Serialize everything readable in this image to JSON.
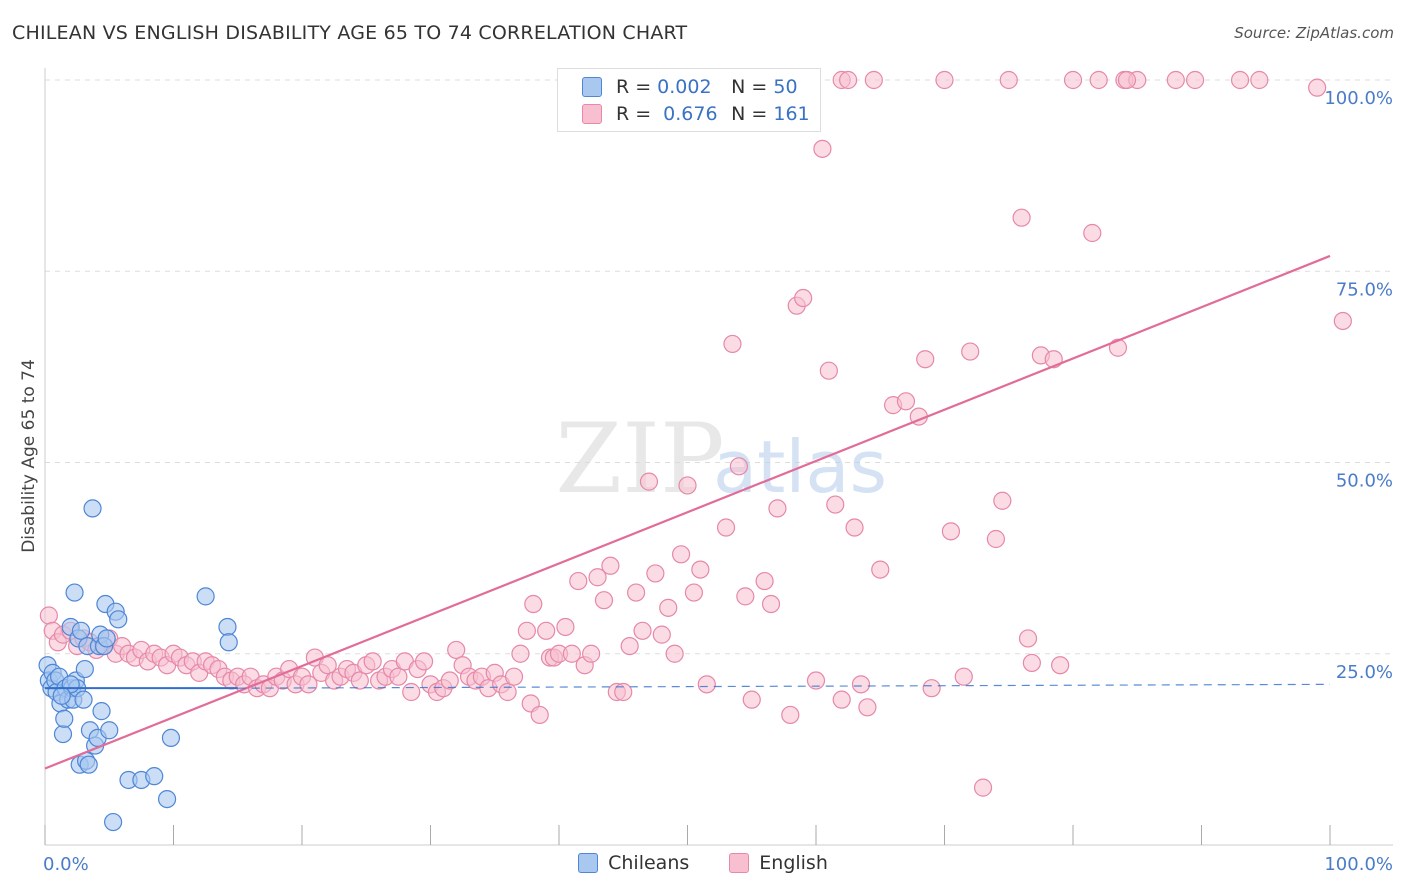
{
  "header": {
    "title": "CHILEAN VS ENGLISH DISABILITY AGE 65 TO 74 CORRELATION CHART",
    "source": "Source: ZipAtlas.com"
  },
  "legend": {
    "rows": [
      {
        "r_label": "R =",
        "r_value": "0.002",
        "n_label": "N =",
        "n_value": "50"
      },
      {
        "r_label": "R =",
        "r_value": "0.676",
        "n_label": "N =",
        "n_value": "161"
      }
    ]
  },
  "bottom_legend": {
    "series1": "Chileans",
    "series2": "English"
  },
  "watermark": {
    "part1": "ZIP",
    "part2": "atlas"
  },
  "colors": {
    "chileans_fill": "#a9c8f0",
    "chileans_stroke": "#4f86d6",
    "chileans_line": "#2f6fce",
    "english_fill": "#f7bfd0",
    "english_stroke": "#e688a8",
    "english_line": "#e26c98",
    "tick_text": "#4a7cc8",
    "grid": "#dddddd"
  },
  "chart_data": {
    "type": "scatter",
    "title": "CHILEAN VS ENGLISH DISABILITY AGE 65 TO 74 CORRELATION CHART",
    "xlabel": "",
    "ylabel": "Disability Age 65 to 74",
    "xlim": [
      0,
      100
    ],
    "ylim": [
      0,
      101
    ],
    "x_tick_labels": [
      "0.0%",
      "100.0%"
    ],
    "y_ticks": [
      25,
      50,
      75,
      100
    ],
    "y_tick_labels": [
      "25.0%",
      "50.0%",
      "75.0%",
      "100.0%"
    ],
    "grid": true,
    "series": [
      {
        "name": "Chileans",
        "r": 0.002,
        "n": 50,
        "points": [
          [
            0.2,
            23.5
          ],
          [
            0.3,
            21.5
          ],
          [
            0.5,
            20.5
          ],
          [
            0.6,
            22.5
          ],
          [
            0.8,
            21.5
          ],
          [
            0.9,
            20.0
          ],
          [
            1.1,
            22.0
          ],
          [
            1.2,
            18.5
          ],
          [
            1.4,
            14.5
          ],
          [
            1.5,
            16.5
          ],
          [
            1.6,
            20.5
          ],
          [
            1.8,
            19.0
          ],
          [
            2.0,
            28.5
          ],
          [
            2.1,
            20.5
          ],
          [
            2.2,
            19.0
          ],
          [
            2.3,
            33.0
          ],
          [
            2.4,
            21.5
          ],
          [
            2.5,
            20.5
          ],
          [
            2.6,
            27.0
          ],
          [
            2.7,
            10.5
          ],
          [
            2.8,
            28.0
          ],
          [
            3.0,
            19.0
          ],
          [
            3.1,
            23.0
          ],
          [
            3.2,
            11.0
          ],
          [
            3.3,
            26.0
          ],
          [
            3.4,
            10.5
          ],
          [
            3.5,
            15.0
          ],
          [
            3.7,
            44.0
          ],
          [
            3.9,
            13.0
          ],
          [
            4.1,
            14.0
          ],
          [
            4.2,
            26.0
          ],
          [
            4.3,
            27.5
          ],
          [
            4.4,
            17.5
          ],
          [
            4.6,
            26.0
          ],
          [
            4.7,
            31.5
          ],
          [
            4.8,
            27.0
          ],
          [
            5.0,
            15.0
          ],
          [
            5.3,
            3.0
          ],
          [
            5.5,
            30.5
          ],
          [
            5.7,
            29.5
          ],
          [
            6.5,
            8.5
          ],
          [
            7.5,
            8.5
          ],
          [
            8.5,
            9.0
          ],
          [
            9.5,
            6.0
          ],
          [
            9.8,
            14.0
          ],
          [
            12.5,
            32.5
          ],
          [
            14.2,
            28.5
          ],
          [
            14.3,
            26.5
          ],
          [
            2.0,
            21.0
          ],
          [
            1.3,
            19.5
          ]
        ],
        "trend": {
          "x": [
            0,
            15
          ],
          "y": [
            20.5,
            20.5
          ]
        },
        "trend_dashed": {
          "x": [
            15,
            100
          ],
          "y": [
            20.5,
            21.0
          ]
        }
      },
      {
        "name": "English",
        "r": 0.676,
        "n": 161,
        "points": [
          [
            0.3,
            30.0
          ],
          [
            0.6,
            28.0
          ],
          [
            1.0,
            26.5
          ],
          [
            1.4,
            27.5
          ],
          [
            2.0,
            28.0
          ],
          [
            2.5,
            26.0
          ],
          [
            3.0,
            27.0
          ],
          [
            3.5,
            26.5
          ],
          [
            4.0,
            25.5
          ],
          [
            4.5,
            26.0
          ],
          [
            5.0,
            27.0
          ],
          [
            5.5,
            25.0
          ],
          [
            6.0,
            26.0
          ],
          [
            6.5,
            25.0
          ],
          [
            7.0,
            24.5
          ],
          [
            7.5,
            25.5
          ],
          [
            8.0,
            24.0
          ],
          [
            8.5,
            25.0
          ],
          [
            9.0,
            24.5
          ],
          [
            9.5,
            23.5
          ],
          [
            10.0,
            25.0
          ],
          [
            10.5,
            24.5
          ],
          [
            11.0,
            23.5
          ],
          [
            11.5,
            24.0
          ],
          [
            12.0,
            22.5
          ],
          [
            12.5,
            24.0
          ],
          [
            13.0,
            23.5
          ],
          [
            13.5,
            23.0
          ],
          [
            14.0,
            22.0
          ],
          [
            14.5,
            21.5
          ],
          [
            15.0,
            22.0
          ],
          [
            15.5,
            21.0
          ],
          [
            16.0,
            22.0
          ],
          [
            16.5,
            20.5
          ],
          [
            17.0,
            21.0
          ],
          [
            17.5,
            20.5
          ],
          [
            18.0,
            22.0
          ],
          [
            18.5,
            21.5
          ],
          [
            19.0,
            23.0
          ],
          [
            19.5,
            21.0
          ],
          [
            20.0,
            22.0
          ],
          [
            20.5,
            21.0
          ],
          [
            21.0,
            24.5
          ],
          [
            21.5,
            22.5
          ],
          [
            22.0,
            23.5
          ],
          [
            22.5,
            21.5
          ],
          [
            23.0,
            22.0
          ],
          [
            23.5,
            23.0
          ],
          [
            24.0,
            22.5
          ],
          [
            24.5,
            21.5
          ],
          [
            25.0,
            23.5
          ],
          [
            25.5,
            24.0
          ],
          [
            26.0,
            21.5
          ],
          [
            26.5,
            22.0
          ],
          [
            27.0,
            23.0
          ],
          [
            27.5,
            22.0
          ],
          [
            28.0,
            24.0
          ],
          [
            28.5,
            20.0
          ],
          [
            29.0,
            23.0
          ],
          [
            29.5,
            24.0
          ],
          [
            30.0,
            21.0
          ],
          [
            30.5,
            20.0
          ],
          [
            31.0,
            20.5
          ],
          [
            31.5,
            21.5
          ],
          [
            32.0,
            25.5
          ],
          [
            32.5,
            23.5
          ],
          [
            33.0,
            22.0
          ],
          [
            33.5,
            21.5
          ],
          [
            34.0,
            22.0
          ],
          [
            34.5,
            20.5
          ],
          [
            35.0,
            22.5
          ],
          [
            35.5,
            21.0
          ],
          [
            36.0,
            20.0
          ],
          [
            36.5,
            22.0
          ],
          [
            37.0,
            25.0
          ],
          [
            37.5,
            28.0
          ],
          [
            37.8,
            18.5
          ],
          [
            38.0,
            31.5
          ],
          [
            38.5,
            17.0
          ],
          [
            39.0,
            28.0
          ],
          [
            39.3,
            24.5
          ],
          [
            39.6,
            24.5
          ],
          [
            40.0,
            25.0
          ],
          [
            40.5,
            28.5
          ],
          [
            41.0,
            25.0
          ],
          [
            41.5,
            34.5
          ],
          [
            42.0,
            23.5
          ],
          [
            42.5,
            25.0
          ],
          [
            43.0,
            35.0
          ],
          [
            43.5,
            32.0
          ],
          [
            44.0,
            36.5
          ],
          [
            44.5,
            20.0
          ],
          [
            45.0,
            20.0
          ],
          [
            45.5,
            26.0
          ],
          [
            46.0,
            33.0
          ],
          [
            46.5,
            28.0
          ],
          [
            47.0,
            47.5
          ],
          [
            47.5,
            35.5
          ],
          [
            48.0,
            27.5
          ],
          [
            48.5,
            31.0
          ],
          [
            49.0,
            25.0
          ],
          [
            49.5,
            38.0
          ],
          [
            50.0,
            47.0
          ],
          [
            50.5,
            33.0
          ],
          [
            51.0,
            36.0
          ],
          [
            51.5,
            21.0
          ],
          [
            53.0,
            41.5
          ],
          [
            53.5,
            65.5
          ],
          [
            54.0,
            49.5
          ],
          [
            54.5,
            32.5
          ],
          [
            55.0,
            19.0
          ],
          [
            56.0,
            34.5
          ],
          [
            56.5,
            31.5
          ],
          [
            57.0,
            44.0
          ],
          [
            58.0,
            17.0
          ],
          [
            58.5,
            70.5
          ],
          [
            59.0,
            71.5
          ],
          [
            60.0,
            21.5
          ],
          [
            60.5,
            91.0
          ],
          [
            61.0,
            62.0
          ],
          [
            61.5,
            44.5
          ],
          [
            62.0,
            19.0
          ],
          [
            63.0,
            41.5
          ],
          [
            63.5,
            21.0
          ],
          [
            64.0,
            18.0
          ],
          [
            65.0,
            36.0
          ],
          [
            66.0,
            57.5
          ],
          [
            67.0,
            58.0
          ],
          [
            68.0,
            56.0
          ],
          [
            68.5,
            63.5
          ],
          [
            69.0,
            20.5
          ],
          [
            70.5,
            41.0
          ],
          [
            71.5,
            22.0
          ],
          [
            72.0,
            64.5
          ],
          [
            73.0,
            7.5
          ],
          [
            74.0,
            40.0
          ],
          [
            74.5,
            45.0
          ],
          [
            75.0,
            100.0
          ],
          [
            76.0,
            82.0
          ],
          [
            76.5,
            27.0
          ],
          [
            77.5,
            64.0
          ],
          [
            78.5,
            63.5
          ],
          [
            79.0,
            23.5
          ],
          [
            80.0,
            100.0
          ],
          [
            81.5,
            80.0
          ],
          [
            82.0,
            100.0
          ],
          [
            83.5,
            65.0
          ],
          [
            84.0,
            100.0
          ],
          [
            85.0,
            100.0
          ],
          [
            88.0,
            100.0
          ],
          [
            89.5,
            100.0
          ],
          [
            93.0,
            100.0
          ],
          [
            94.5,
            100.0
          ],
          [
            99.0,
            99.0
          ],
          [
            101.0,
            68.5
          ],
          [
            62.0,
            100.0
          ],
          [
            64.5,
            100.0
          ],
          [
            70.0,
            100.0
          ],
          [
            62.5,
            100.0
          ],
          [
            84.2,
            100.0
          ],
          [
            76.8,
            23.8
          ]
        ],
        "trend": {
          "x": [
            0,
            100
          ],
          "y": [
            10.0,
            77.0
          ]
        }
      }
    ]
  }
}
